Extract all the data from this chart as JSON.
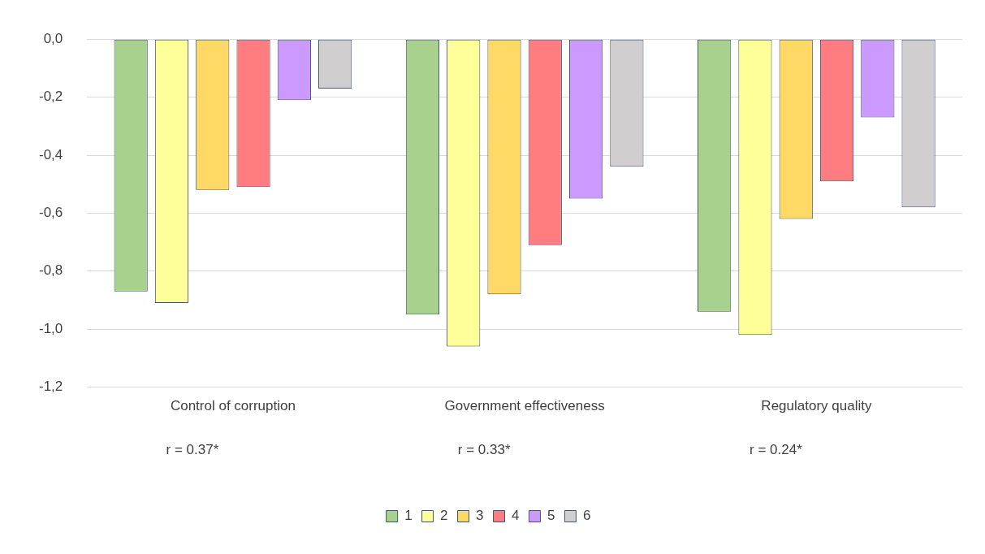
{
  "chart_data": {
    "type": "bar",
    "categories": [
      "Control of corruption",
      "Government effectiveness",
      "Regulatory quality"
    ],
    "series": [
      {
        "name": "1",
        "color": "#a9d18e",
        "values": [
          -0.87,
          -0.95,
          -0.94
        ]
      },
      {
        "name": "2",
        "color": "#ffff99",
        "values": [
          -0.91,
          -1.06,
          -1.02
        ]
      },
      {
        "name": "3",
        "color": "#ffd966",
        "values": [
          -0.52,
          -0.88,
          -0.62
        ]
      },
      {
        "name": "4",
        "color": "#ff7c80",
        "values": [
          -0.51,
          -0.71,
          -0.49
        ]
      },
      {
        "name": "5",
        "color": "#cc99ff",
        "values": [
          -0.21,
          -0.55,
          -0.27
        ]
      },
      {
        "name": "6",
        "color": "#d0cece",
        "values": [
          -0.17,
          -0.44,
          -0.58
        ]
      }
    ],
    "ylim": [
      -1.2,
      0
    ],
    "yticks": [
      {
        "value": -1.2,
        "label": "-1,2"
      },
      {
        "value": -1,
        "label": "-1,0"
      },
      {
        "value": -0.8,
        "label": "-0,8"
      },
      {
        "value": -0.6,
        "label": "-0,6"
      },
      {
        "value": -0.4,
        "label": "-0,4"
      },
      {
        "value": -0.2,
        "label": "-0,2"
      },
      {
        "value": 0,
        "label": "0,0"
      }
    ],
    "annotations": [
      "r = 0.37*",
      "r = 0.33*",
      "r = 0.24*"
    ],
    "grid": "y",
    "legend": "bottom"
  }
}
